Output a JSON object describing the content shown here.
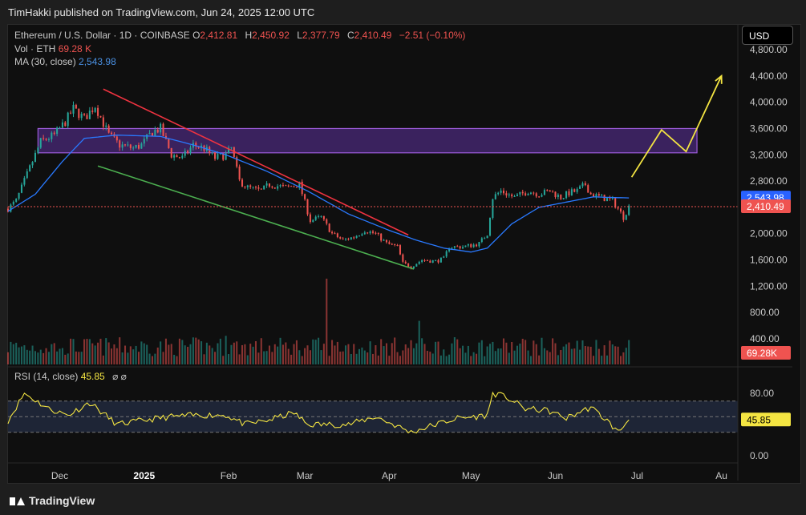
{
  "header": {
    "published": "TimHakki published on TradingView.com, Jun 24, 2025 12:00 UTC"
  },
  "legend": {
    "symbol": "Ethereum / U.S. Dollar · 1D · COINBASE",
    "o_label": "O",
    "o_value": "2,412.81",
    "h_label": "H",
    "h_value": "2,450.92",
    "l_label": "L",
    "l_value": "2,377.79",
    "c_label": "C",
    "c_value": "2,410.49",
    "change": "−2.51 (−0.10%)",
    "vol_label": "Vol · ETH",
    "vol_value": "69.28 K",
    "ma_label": "MA (30, close)",
    "ma_value": "2,543.98",
    "rsi_label": "RSI (14, close)",
    "rsi_value": "45.85"
  },
  "currency": "USD",
  "footer": {
    "brand": "TradingView"
  },
  "colors": {
    "up": "#26a69a",
    "down": "#ef5350",
    "ma": "#2962ff",
    "rsi": "#f4e542",
    "zone_fill": "#4a2a7a",
    "zone_border": "#9c5bd9",
    "resistance": "#ef3340",
    "support": "#4caf50",
    "arrow": "#f4e542"
  },
  "chart_data": [
    {
      "type": "candlestick",
      "price_axis": {
        "min": 0,
        "max": 4800,
        "ticks": [
          "4,800.00",
          "4,400.00",
          "4,000.00",
          "3,600.00",
          "3,200.00",
          "2,800.00",
          "2,000.00",
          "1,600.00",
          "1,200.00",
          "800.00",
          "400.00"
        ],
        "tick_values": [
          4800,
          4400,
          4000,
          3600,
          3200,
          2800,
          2000,
          1600,
          1200,
          800,
          400
        ]
      },
      "x_axis": {
        "labels": [
          "Dec",
          "2025",
          "Feb",
          "Mar",
          "Apr",
          "May",
          "Jun",
          "Jul",
          "Au"
        ],
        "label_days": [
          19,
          50,
          81,
          109,
          140,
          170,
          201,
          231,
          262
        ]
      },
      "price_labels": {
        "ma": "2,543.98",
        "ma_value": 2543.98,
        "last": "2,410.49",
        "last_value": 2410.49,
        "volume": "69.28K"
      },
      "ohlc_anchor_closes": [
        [
          0,
          2380
        ],
        [
          3,
          2500
        ],
        [
          8,
          3000
        ],
        [
          12,
          3400
        ],
        [
          17,
          3500
        ],
        [
          21,
          3700
        ],
        [
          24,
          3900
        ],
        [
          28,
          3750
        ],
        [
          32,
          3950
        ],
        [
          37,
          3500
        ],
        [
          41,
          3350
        ],
        [
          46,
          3300
        ],
        [
          49,
          3350
        ],
        [
          53,
          3550
        ],
        [
          56,
          3600
        ],
        [
          60,
          3200
        ],
        [
          64,
          3150
        ],
        [
          68,
          3350
        ],
        [
          72,
          3300
        ],
        [
          76,
          3150
        ],
        [
          80,
          3200
        ],
        [
          82,
          3300
        ],
        [
          85,
          2800
        ],
        [
          88,
          2700
        ],
        [
          93,
          2650
        ],
        [
          96,
          2750
        ],
        [
          102,
          2700
        ],
        [
          107,
          2750
        ],
        [
          111,
          2200
        ],
        [
          115,
          2250
        ],
        [
          119,
          2000
        ],
        [
          123,
          1900
        ],
        [
          127,
          1950
        ],
        [
          131,
          2050
        ],
        [
          135,
          2000
        ],
        [
          139,
          1850
        ],
        [
          143,
          1800
        ],
        [
          145,
          1550
        ],
        [
          148,
          1500
        ],
        [
          152,
          1600
        ],
        [
          157,
          1580
        ],
        [
          160,
          1620
        ],
        [
          162,
          1800
        ],
        [
          167,
          1800
        ],
        [
          171,
          1830
        ],
        [
          173,
          1850
        ],
        [
          176,
          2000
        ],
        [
          178,
          2550
        ],
        [
          181,
          2650
        ],
        [
          186,
          2550
        ],
        [
          191,
          2650
        ],
        [
          195,
          2600
        ],
        [
          199,
          2650
        ],
        [
          203,
          2550
        ],
        [
          206,
          2620
        ],
        [
          209,
          2650
        ],
        [
          212,
          2750
        ],
        [
          214,
          2600
        ],
        [
          218,
          2550
        ],
        [
          222,
          2500
        ],
        [
          224,
          2380
        ],
        [
          226,
          2250
        ],
        [
          228,
          2410
        ]
      ],
      "ma_anchor": [
        [
          0,
          2340
        ],
        [
          10,
          2600
        ],
        [
          20,
          3100
        ],
        [
          28,
          3450
        ],
        [
          40,
          3500
        ],
        [
          56,
          3480
        ],
        [
          68,
          3350
        ],
        [
          80,
          3200
        ],
        [
          95,
          2950
        ],
        [
          110,
          2650
        ],
        [
          125,
          2300
        ],
        [
          140,
          2050
        ],
        [
          150,
          1900
        ],
        [
          160,
          1780
        ],
        [
          170,
          1720
        ],
        [
          176,
          1780
        ],
        [
          185,
          2150
        ],
        [
          195,
          2400
        ],
        [
          205,
          2480
        ],
        [
          215,
          2560
        ],
        [
          222,
          2550
        ],
        [
          228,
          2544
        ]
      ],
      "volume_bars_k": [
        [
          20,
          120
        ],
        [
          80,
          210
        ],
        [
          110,
          140
        ],
        [
          117,
          630
        ],
        [
          150,
          155
        ],
        [
          151,
          320
        ],
        [
          160,
          110
        ],
        [
          190,
          180
        ]
      ],
      "zone": {
        "x0_day": 11,
        "x1_day": 253,
        "low": 3230,
        "high": 3600
      },
      "resistance_line": [
        [
          35,
          4200
        ],
        [
          147,
          1980
        ]
      ],
      "support_line": [
        [
          33,
          3030
        ],
        [
          149,
          1460
        ]
      ],
      "projection": [
        [
          229,
          2860
        ],
        [
          240,
          3580
        ],
        [
          249,
          3250
        ],
        [
          262,
          4400
        ]
      ],
      "rsi": {
        "min": 0,
        "max": 100,
        "ticks": [
          "80.00",
          "0.00"
        ],
        "tick_values": [
          80,
          0
        ],
        "upper": 70,
        "mid": 50,
        "lower": 30,
        "last": "45.85",
        "last_value": 45.85,
        "anchor": [
          [
            0,
            45
          ],
          [
            6,
            80
          ],
          [
            15,
            60
          ],
          [
            22,
            52
          ],
          [
            30,
            68
          ],
          [
            40,
            40
          ],
          [
            55,
            48
          ],
          [
            60,
            50
          ],
          [
            70,
            52
          ],
          [
            80,
            52
          ],
          [
            87,
            40
          ],
          [
            95,
            45
          ],
          [
            105,
            55
          ],
          [
            110,
            40
          ],
          [
            125,
            40
          ],
          [
            135,
            50
          ],
          [
            148,
            30
          ],
          [
            155,
            38
          ],
          [
            165,
            48
          ],
          [
            172,
            50
          ],
          [
            176,
            52
          ],
          [
            178,
            80
          ],
          [
            183,
            75
          ],
          [
            190,
            60
          ],
          [
            198,
            58
          ],
          [
            205,
            48
          ],
          [
            210,
            56
          ],
          [
            214,
            62
          ],
          [
            220,
            45
          ],
          [
            224,
            30
          ],
          [
            228,
            45.85
          ]
        ]
      }
    }
  ]
}
